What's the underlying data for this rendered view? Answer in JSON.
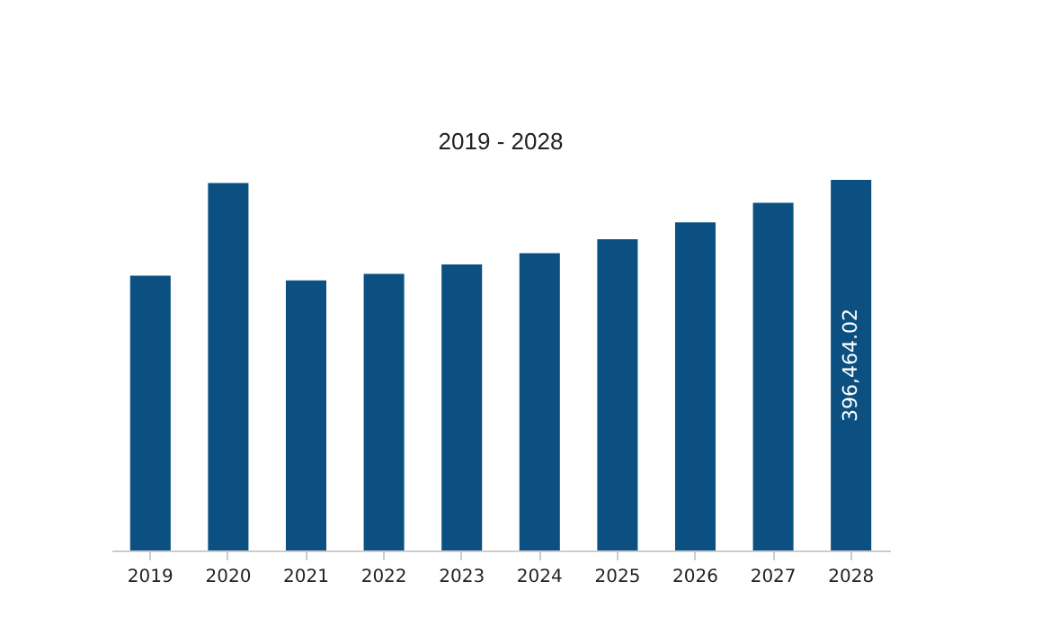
{
  "chart_data": {
    "type": "bar",
    "title": "2019 - 2028",
    "categories": [
      "2019",
      "2020",
      "2021",
      "2022",
      "2023",
      "2024",
      "2025",
      "2026",
      "2027",
      "2028"
    ],
    "values": [
      294000,
      393000,
      289000,
      296000,
      306000,
      318000,
      333000,
      351000,
      372000,
      396464.02
    ],
    "value_labels": [
      null,
      null,
      null,
      null,
      null,
      null,
      null,
      null,
      null,
      "396,464.02"
    ],
    "color": "#0b5080",
    "grid": false,
    "tick_labels": "x"
  }
}
